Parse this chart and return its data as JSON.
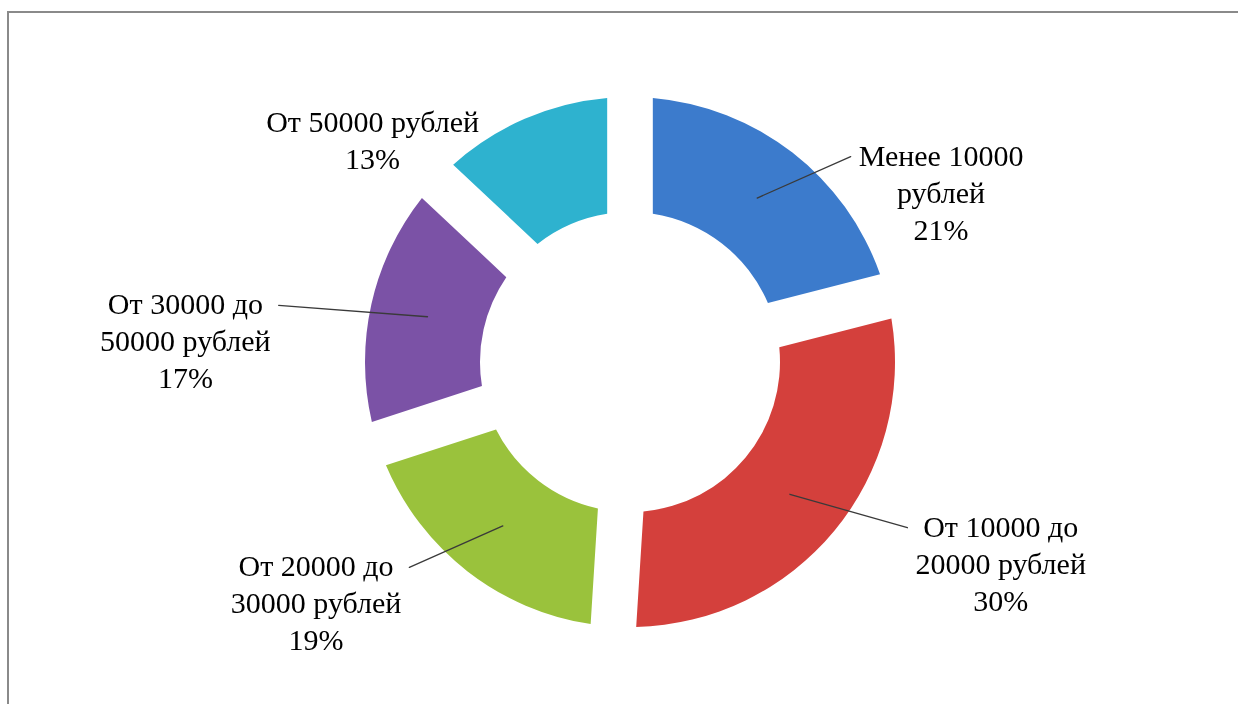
{
  "chart_data": {
    "type": "donut",
    "categories": [
      "Менее 10000 рублей",
      "От 10000 до 20000 рублей",
      "От 20000 до 30000 рублей",
      "От 30000 до 50000 рублей",
      "От 50000 рублей"
    ],
    "values": [
      21,
      30,
      19,
      17,
      13
    ],
    "value_labels": [
      "21%",
      "30%",
      "19%",
      "17%",
      "13%"
    ],
    "colors": [
      "#3c7bcc",
      "#d4403c",
      "#9ac23c",
      "#7b52a6",
      "#2eb2cf"
    ]
  }
}
